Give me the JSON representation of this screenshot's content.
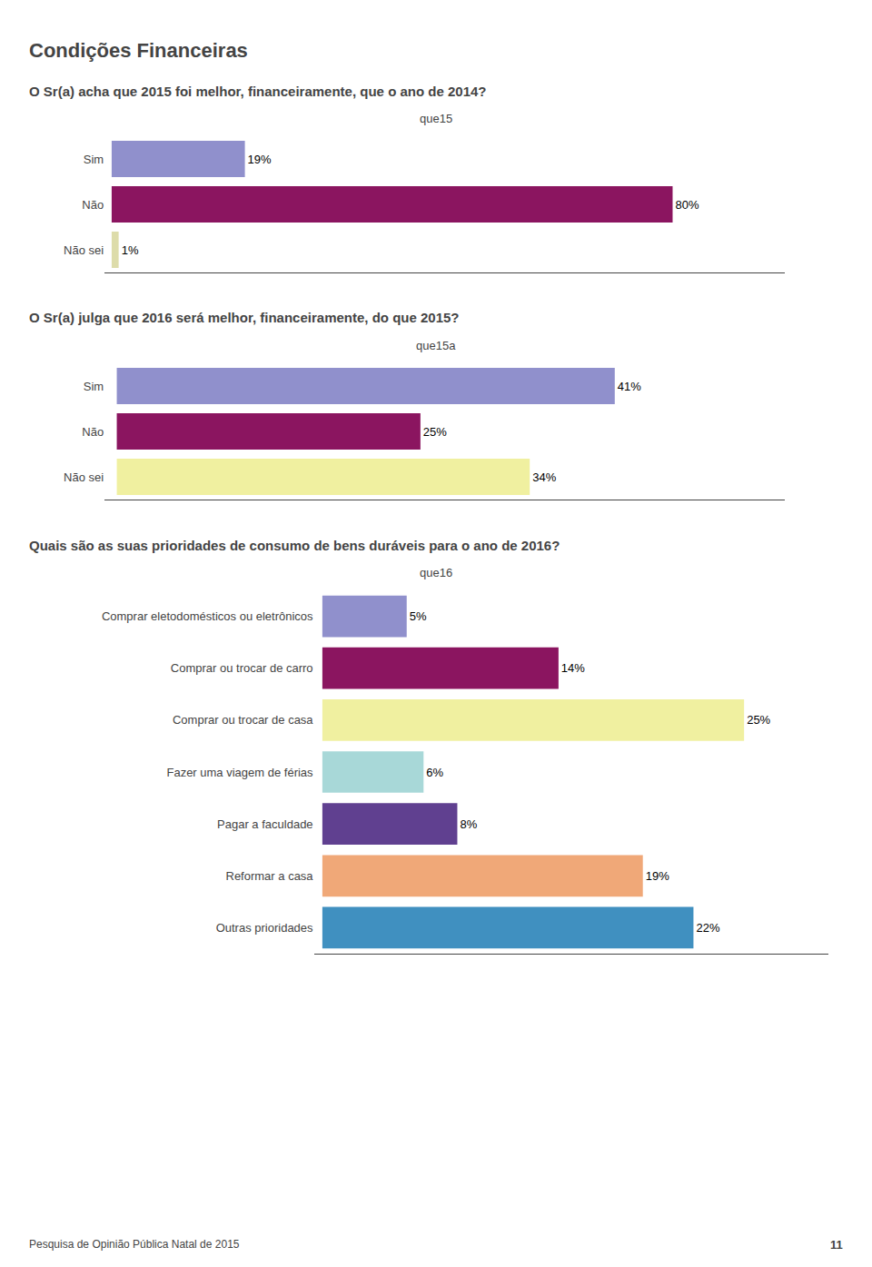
{
  "title": "Condições Financeiras",
  "annotations": [
    "Pesquisa de Opinião Pública Natal de 2015",
    "11"
  ],
  "chart_data": [
    {
      "type": "bar",
      "orientation": "horizontal",
      "title": "O Sr(a) acha que 2015 foi melhor, financeiramente, que o ano de 2014?",
      "subtitle": "que15",
      "categories": [
        "Sim",
        "Não",
        "Não sei"
      ],
      "values": [
        19,
        80,
        1
      ],
      "value_labels": [
        "19%",
        "80%",
        "1%"
      ],
      "colors": [
        "#9090cc",
        "#8b1560",
        "#dddcaa"
      ],
      "xlim": [
        -1,
        96
      ],
      "grid": false,
      "data_labels": true,
      "tick_labels": "y"
    },
    {
      "type": "bar",
      "orientation": "horizontal",
      "title": "O Sr(a) julga que 2016 será melhor, financeiramente, do que 2015?",
      "subtitle": "que15a",
      "categories": [
        "Sim",
        "Não",
        "Não sei"
      ],
      "values": [
        41,
        25,
        34
      ],
      "value_labels": [
        "41%",
        "25%",
        "34%"
      ],
      "colors": [
        "#9090cc",
        "#8b1560",
        "#f0f0a0"
      ],
      "xlim": [
        -1,
        55
      ],
      "grid": false,
      "data_labels": true,
      "tick_labels": "y"
    },
    {
      "type": "bar",
      "orientation": "horizontal",
      "title": "Quais são as suas prioridades de consumo de bens duráveis para o ano de 2016?",
      "subtitle": "que16",
      "categories": [
        "Comprar eletodomésticos ou eletrônicos",
        "Comprar ou trocar de carro",
        "Comprar ou trocar de casa",
        "Fazer uma viagem de férias",
        "Pagar a faculdade",
        "Reformar a casa",
        "Outras prioridades"
      ],
      "values": [
        5,
        14,
        25,
        6,
        8,
        19,
        22
      ],
      "value_labels": [
        "5%",
        "14%",
        "25%",
        "6%",
        "8%",
        "19%",
        "22%"
      ],
      "colors": [
        "#9090cc",
        "#8b1560",
        "#f0f0a0",
        "#a8d8d8",
        "#604090",
        "#f0a878",
        "#4090c0"
      ],
      "xlim": [
        -0.5,
        30
      ],
      "grid": false,
      "data_labels": true,
      "tick_labels": "y"
    }
  ]
}
